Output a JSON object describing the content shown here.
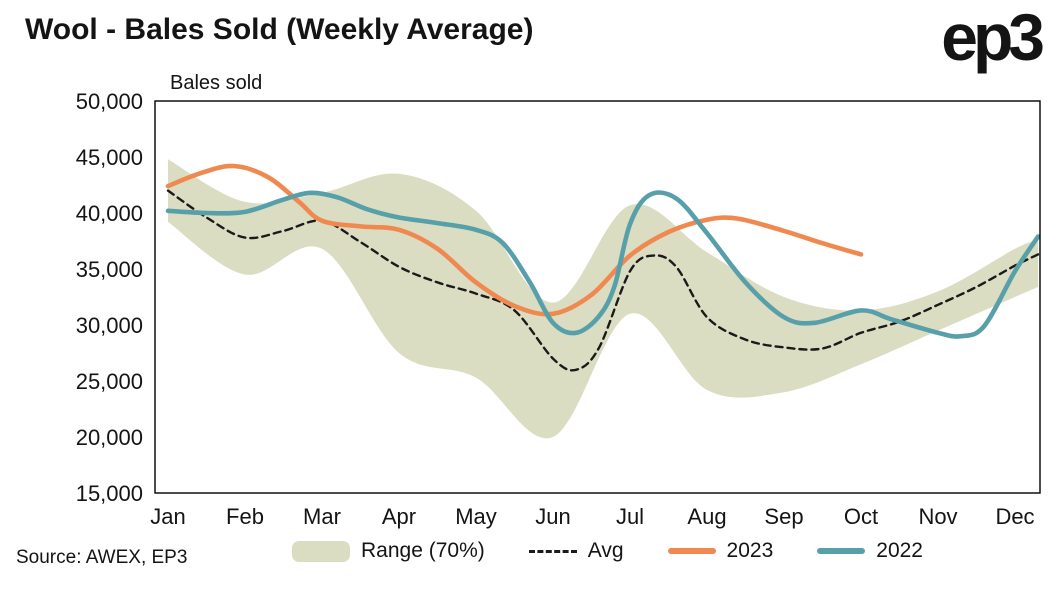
{
  "logo": {
    "text": "ep3"
  },
  "footer": {
    "source": "Source: AWEX, EP3"
  },
  "chart_data": {
    "type": "line",
    "title": "Wool - Bales Sold (Weekly Average)",
    "ylabel": "Bales sold",
    "xlabel": "",
    "ylim": [
      15000,
      50000
    ],
    "yticks": [
      15000,
      20000,
      25000,
      30000,
      35000,
      40000,
      45000,
      50000
    ],
    "categories": [
      "Jan",
      "Feb",
      "Mar",
      "Apr",
      "May",
      "Jun",
      "Jul",
      "Aug",
      "Sep",
      "Oct",
      "Nov",
      "Dec"
    ],
    "grid": false,
    "legend_position": "bottom",
    "band": {
      "name": "Range (70%)",
      "color": "#dbddc3",
      "upper": [
        [
          0,
          44800
        ],
        [
          1,
          41000
        ],
        [
          2,
          41800
        ],
        [
          3,
          43500
        ],
        [
          4,
          40200
        ],
        [
          5,
          32000
        ],
        [
          6,
          40700
        ],
        [
          7,
          36500
        ],
        [
          8,
          32500
        ],
        [
          9,
          31300
        ],
        [
          10,
          33000
        ],
        [
          11,
          36800
        ],
        [
          11.3,
          37600
        ]
      ],
      "lower": [
        [
          0,
          39200
        ],
        [
          1,
          34500
        ],
        [
          2,
          36800
        ],
        [
          3,
          27500
        ],
        [
          4,
          25300
        ],
        [
          5,
          20000
        ],
        [
          6,
          31000
        ],
        [
          7,
          24200
        ],
        [
          8,
          24000
        ],
        [
          9,
          26500
        ],
        [
          10,
          29500
        ],
        [
          11,
          32500
        ],
        [
          11.3,
          33400
        ]
      ]
    },
    "series": [
      {
        "name": "Avg",
        "style": "dashed",
        "color": "#1a1a1a",
        "points": [
          [
            0,
            42000
          ],
          [
            0.5,
            39600
          ],
          [
            1,
            37800
          ],
          [
            1.5,
            38400
          ],
          [
            2,
            39300
          ],
          [
            2.5,
            37400
          ],
          [
            3,
            35200
          ],
          [
            3.5,
            33800
          ],
          [
            4,
            32800
          ],
          [
            4.5,
            31300
          ],
          [
            5,
            27000
          ],
          [
            5.3,
            26000
          ],
          [
            5.6,
            28000
          ],
          [
            6,
            34800
          ],
          [
            6.3,
            36200
          ],
          [
            6.6,
            35200
          ],
          [
            7,
            30700
          ],
          [
            7.5,
            28700
          ],
          [
            8,
            28000
          ],
          [
            8.5,
            27900
          ],
          [
            9,
            29300
          ],
          [
            9.5,
            30300
          ],
          [
            10,
            31800
          ],
          [
            10.5,
            33400
          ],
          [
            11,
            35300
          ],
          [
            11.3,
            36300
          ]
        ]
      },
      {
        "name": "2023",
        "style": "solid",
        "color": "#f08950",
        "points": [
          [
            0,
            42400
          ],
          [
            0.4,
            43500
          ],
          [
            0.85,
            44200
          ],
          [
            1.3,
            43200
          ],
          [
            1.7,
            41000
          ],
          [
            2,
            39300
          ],
          [
            2.5,
            38800
          ],
          [
            3,
            38500
          ],
          [
            3.5,
            36800
          ],
          [
            4,
            33800
          ],
          [
            4.5,
            31700
          ],
          [
            5,
            31000
          ],
          [
            5.5,
            32700
          ],
          [
            6,
            36200
          ],
          [
            6.5,
            38300
          ],
          [
            7,
            39400
          ],
          [
            7.4,
            39500
          ],
          [
            8,
            38400
          ],
          [
            8.5,
            37300
          ],
          [
            9,
            36300
          ]
        ]
      },
      {
        "name": "2022",
        "style": "solid",
        "color": "#58a0a9",
        "points": [
          [
            0,
            40200
          ],
          [
            0.5,
            40000
          ],
          [
            1,
            40100
          ],
          [
            1.5,
            41200
          ],
          [
            1.85,
            41800
          ],
          [
            2.2,
            41400
          ],
          [
            2.6,
            40300
          ],
          [
            3,
            39600
          ],
          [
            3.5,
            39100
          ],
          [
            4,
            38500
          ],
          [
            4.35,
            37300
          ],
          [
            4.7,
            33800
          ],
          [
            5,
            30200
          ],
          [
            5.3,
            29300
          ],
          [
            5.6,
            30800
          ],
          [
            5.8,
            33500
          ],
          [
            6,
            39000
          ],
          [
            6.25,
            41600
          ],
          [
            6.6,
            41300
          ],
          [
            7,
            38200
          ],
          [
            7.5,
            33800
          ],
          [
            8,
            30700
          ],
          [
            8.4,
            30200
          ],
          [
            9,
            31300
          ],
          [
            9.4,
            30500
          ],
          [
            10,
            29300
          ],
          [
            10.3,
            29000
          ],
          [
            10.6,
            29900
          ],
          [
            11,
            34800
          ],
          [
            11.3,
            37900
          ]
        ]
      }
    ]
  }
}
